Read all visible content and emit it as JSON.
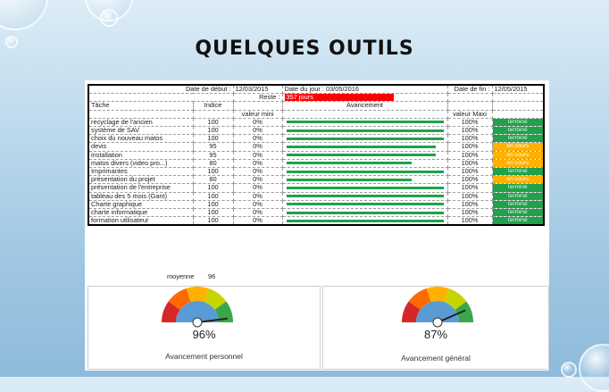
{
  "slide": {
    "title": "QUELQUES OUTILS"
  },
  "header": {
    "date_debut_label": "Date de début :",
    "date_debut": "12/03/2015",
    "date_jour_label": "Date du jour :",
    "date_jour": "03/05/2016",
    "date_fin_label": "Date de fin :",
    "date_fin": "12/05/2015",
    "reste_label": "Reste :",
    "reste_value": "357 jours"
  },
  "columns": {
    "tache": "Tâche",
    "indice": "Indice",
    "avancement": "Avancement",
    "valeur_mini": "valeur mini",
    "valeur_maxi": "valeur Maxi"
  },
  "rows": [
    {
      "task": "recyclage de l'ancien",
      "indice": "100",
      "min": "0%",
      "progress": 1.0,
      "max": "100%",
      "status": "terminé",
      "state": "termine"
    },
    {
      "task": "système de SAV",
      "indice": "100",
      "min": "0%",
      "progress": 1.0,
      "max": "100%",
      "status": "terminé",
      "state": "termine"
    },
    {
      "task": "choix du nouveau matos",
      "indice": "100",
      "min": "0%",
      "progress": 1.0,
      "max": "100%",
      "status": "terminé",
      "state": "termine"
    },
    {
      "task": "devis",
      "indice": "95",
      "min": "0%",
      "progress": 0.95,
      "max": "100%",
      "status": "en cours",
      "state": "encours"
    },
    {
      "task": "installation",
      "indice": "95",
      "min": "0%",
      "progress": 0.95,
      "max": "100%",
      "status": "en cours",
      "state": "encours"
    },
    {
      "task": "matos divers (video pro...)",
      "indice": "80",
      "min": "0%",
      "progress": 0.8,
      "max": "100%",
      "status": "en cours",
      "state": "encours"
    },
    {
      "task": "Imprimantes",
      "indice": "100",
      "min": "0%",
      "progress": 1.0,
      "max": "100%",
      "status": "terminé",
      "state": "termine"
    },
    {
      "task": "présentation du projet",
      "indice": "80",
      "min": "0%",
      "progress": 0.8,
      "max": "100%",
      "status": "en cours",
      "state": "encours"
    },
    {
      "task": "présentation de l'entreprise",
      "indice": "100",
      "min": "0%",
      "progress": 1.0,
      "max": "100%",
      "status": "terminé",
      "state": "termine"
    },
    {
      "task": "tableau des 5 mois (Gant)",
      "indice": "100",
      "min": "0%",
      "progress": 1.0,
      "max": "100%",
      "status": "terminé",
      "state": "termine"
    },
    {
      "task": "Charte graphique",
      "indice": "100",
      "min": "0%",
      "progress": 1.0,
      "max": "100%",
      "status": "terminé",
      "state": "termine"
    },
    {
      "task": "charte informatique",
      "indice": "100",
      "min": "0%",
      "progress": 1.0,
      "max": "100%",
      "status": "terminé",
      "state": "termine"
    },
    {
      "task": "formation utilisateur",
      "indice": "100",
      "min": "0%",
      "progress": 1.0,
      "max": "100%",
      "status": "terminé",
      "state": "termine"
    }
  ],
  "moyenne": {
    "label": "moyenne",
    "value": "96"
  },
  "gauges": [
    {
      "percent": "96%",
      "level": 0.96,
      "caption": "Avancement personnel"
    },
    {
      "percent": "87%",
      "level": 0.87,
      "caption": "Avancement général"
    }
  ],
  "colors": {
    "done": "#1fa24a",
    "in_progress": "#ffb000",
    "late": "#ff0000"
  }
}
